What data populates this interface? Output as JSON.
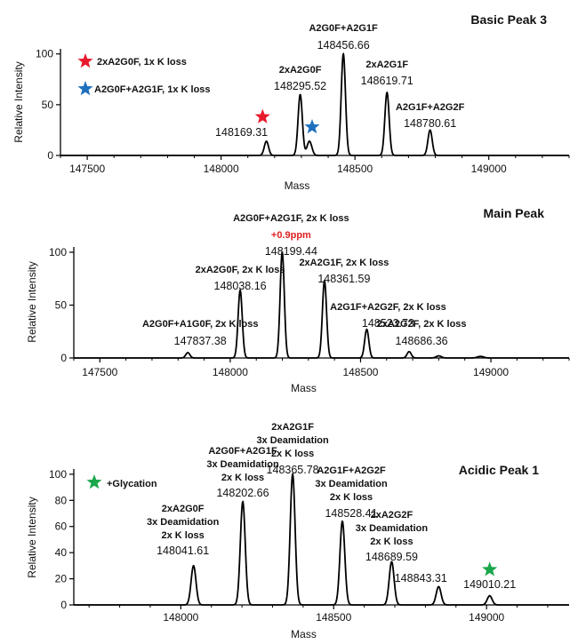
{
  "colors": {
    "red_star": "#e8192c",
    "blue_star": "#1f6fbf",
    "green_star": "#1aa64a",
    "trace": "#000000",
    "ppm_text": "#e02020"
  },
  "chart_data": [
    {
      "type": "line",
      "title": "Basic Peak 3",
      "xlabel": "Mass",
      "ylabel": "Relative Intensity",
      "xlim": [
        147400,
        149300
      ],
      "ylim": [
        0,
        105
      ],
      "xticks": [
        147500,
        148000,
        148500,
        149000
      ],
      "yticks": [
        0,
        50,
        100
      ],
      "grid": false,
      "peaks": [
        {
          "x": 148169.31,
          "y": 14,
          "w": 8
        },
        {
          "x": 148295.52,
          "y": 60,
          "w": 8
        },
        {
          "x": 148330,
          "y": 14,
          "w": 9
        },
        {
          "x": 148456.66,
          "y": 100,
          "w": 8
        },
        {
          "x": 148619.71,
          "y": 62,
          "w": 8
        },
        {
          "x": 148780.61,
          "y": 25,
          "w": 8
        }
      ],
      "annotations": [
        {
          "lines": [
            "2xA2G0F"
          ],
          "mass": "148295.52",
          "x": 148295.52
        },
        {
          "lines": [
            "A2G0F+A2G1F"
          ],
          "mass": "148456.66",
          "x": 148456.66
        },
        {
          "lines": [
            "2xA2G1F"
          ],
          "mass": "148619.71",
          "x": 148619.71
        },
        {
          "lines": [
            "A2G1F+A2G2F"
          ],
          "mass": "148780.61",
          "x": 148780.61
        },
        {
          "lines": [],
          "mass": "148169.31",
          "x": 148169.31
        }
      ],
      "markers": [
        {
          "shape": "star",
          "color": "#e8192c",
          "x": 148155,
          "y": 38
        },
        {
          "shape": "star",
          "color": "#1f6fbf",
          "x": 148340,
          "y": 28
        }
      ],
      "legend": [
        {
          "color": "#e8192c",
          "text": "2xA2G0F,  1x K loss"
        },
        {
          "color": "#1f6fbf",
          "text": "A2G0F+A2G1F,  1x K loss"
        }
      ]
    },
    {
      "type": "line",
      "title": "Main Peak",
      "xlabel": "Mass",
      "ylabel": "Relative Intensity",
      "xlim": [
        147400,
        149300
      ],
      "ylim": [
        0,
        105
      ],
      "xticks": [
        147500,
        148000,
        148500,
        149000
      ],
      "yticks": [
        0,
        50,
        100
      ],
      "grid": false,
      "peaks": [
        {
          "x": 147837.38,
          "y": 5,
          "w": 8
        },
        {
          "x": 148038.16,
          "y": 64,
          "w": 8
        },
        {
          "x": 148199.44,
          "y": 100,
          "w": 8
        },
        {
          "x": 148361.59,
          "y": 73,
          "w": 8
        },
        {
          "x": 148523.73,
          "y": 27,
          "w": 8
        },
        {
          "x": 148686.36,
          "y": 6,
          "w": 8
        },
        {
          "x": 148800,
          "y": 2,
          "w": 10
        },
        {
          "x": 148960,
          "y": 1.5,
          "w": 12
        }
      ],
      "annotations": [
        {
          "lines": [
            "A2G0F+A1G0F,  2x K loss"
          ],
          "mass": "147837.38",
          "x": 147837.38
        },
        {
          "lines": [
            "2xA2G0F,  2x K loss"
          ],
          "mass": "148038.16",
          "x": 148038.16
        },
        {
          "lines": [
            "A2G0F+A2G1F,  2x K loss"
          ],
          "ppm": "+0.9ppm",
          "mass": "148199.44",
          "x": 148199.44
        },
        {
          "lines": [
            "2xA2G1F,  2x K loss"
          ],
          "mass": "148361.59",
          "x": 148361.59
        },
        {
          "lines": [
            "A2G1F+A2G2F,  2x K loss"
          ],
          "mass": "148523.73",
          "x": 148523.73
        },
        {
          "lines": [
            "2xA2G2F,  2x K loss"
          ],
          "mass": "148686.36",
          "x": 148686.36
        }
      ]
    },
    {
      "type": "line",
      "title": "Acidic Peak 1",
      "xlabel": "Mass",
      "ylabel": "Relative Intensity",
      "xlim": [
        147650,
        149270
      ],
      "ylim": [
        0,
        104
      ],
      "xticks": [
        148000,
        148500,
        149000
      ],
      "yticks": [
        0,
        20,
        40,
        60,
        80,
        100
      ],
      "grid": false,
      "peaks": [
        {
          "x": 148041.61,
          "y": 30,
          "w": 8
        },
        {
          "x": 148202.66,
          "y": 79,
          "w": 8
        },
        {
          "x": 148365.78,
          "y": 100,
          "w": 8
        },
        {
          "x": 148528.41,
          "y": 64,
          "w": 8
        },
        {
          "x": 148689.59,
          "y": 33,
          "w": 8
        },
        {
          "x": 148843.31,
          "y": 14,
          "w": 8
        },
        {
          "x": 149010.21,
          "y": 7,
          "w": 8
        }
      ],
      "annotations": [
        {
          "lines": [
            "2xA2G0F",
            "3x Deamidation",
            "2x K loss"
          ],
          "mass": "148041.61",
          "x": 148041.61
        },
        {
          "lines": [
            "A2G0F+A2G1F",
            "3x Deamidation",
            "2x K loss"
          ],
          "mass": "148202.66",
          "x": 148202.66
        },
        {
          "lines": [
            "2xA2G1F",
            "3x Deamidation",
            "2x K loss"
          ],
          "mass": "148365.78",
          "x": 148365.78
        },
        {
          "lines": [
            "A2G1F+A2G2F",
            "3x Deamidation",
            "2x K loss"
          ],
          "mass": "148528.41",
          "x": 148528.41
        },
        {
          "lines": [
            "2xA2G2F",
            "3x Deamidation",
            "2x K loss"
          ],
          "mass": "148689.59",
          "x": 148689.59
        },
        {
          "lines": [],
          "mass": "148843.31",
          "x": 148843.31
        },
        {
          "lines": [],
          "mass": "149010.21",
          "x": 149010.21
        }
      ],
      "markers": [
        {
          "shape": "star",
          "color": "#1aa64a",
          "x": 149010.21,
          "y": 27
        }
      ],
      "legend": [
        {
          "color": "#1aa64a",
          "text": "+Glycation"
        }
      ]
    }
  ]
}
